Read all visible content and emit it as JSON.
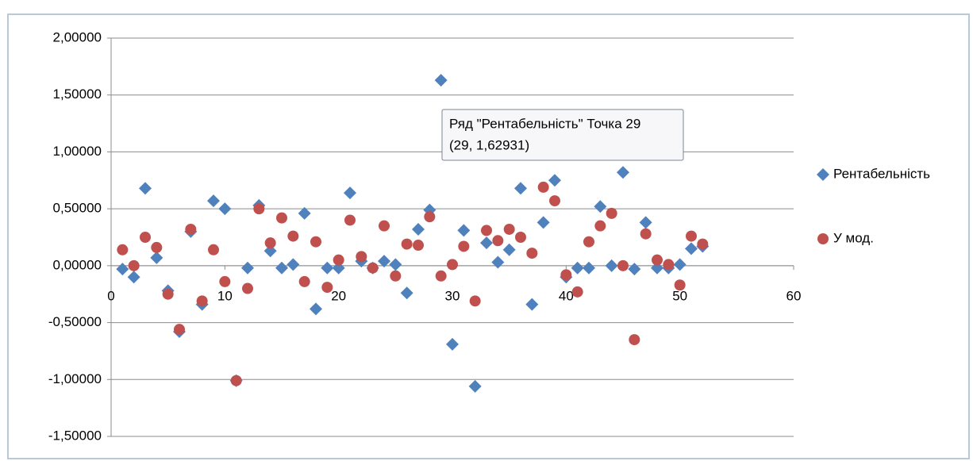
{
  "chart_data": {
    "type": "scatter",
    "x": [
      1,
      2,
      3,
      4,
      5,
      6,
      7,
      8,
      9,
      10,
      11,
      12,
      13,
      14,
      15,
      16,
      17,
      18,
      19,
      20,
      21,
      22,
      23,
      24,
      25,
      26,
      27,
      28,
      29,
      30,
      31,
      32,
      33,
      34,
      35,
      36,
      37,
      38,
      39,
      40,
      41,
      42,
      43,
      44,
      45,
      46,
      47,
      48,
      49,
      50,
      51,
      52
    ],
    "series": [
      {
        "name": "Рентабельність",
        "color": "#4f81bd",
        "marker": "diamond",
        "values": [
          -0.03,
          -0.1,
          0.68,
          0.07,
          -0.22,
          -0.58,
          0.3,
          -0.34,
          0.57,
          0.5,
          -1.01,
          -0.02,
          0.53,
          0.13,
          -0.02,
          0.01,
          0.46,
          -0.38,
          -0.02,
          -0.02,
          0.64,
          0.04,
          -0.02,
          0.04,
          0.01,
          -0.24,
          0.32,
          0.49,
          1.62931,
          -0.69,
          0.31,
          -1.06,
          0.2,
          0.03,
          0.14,
          0.68,
          -0.34,
          0.38,
          0.75,
          -0.1,
          -0.02,
          -0.02,
          0.52,
          0.0,
          0.82,
          -0.03,
          0.38,
          -0.02,
          -0.02,
          0.01,
          0.15,
          0.17
        ]
      },
      {
        "name": "У мод.",
        "color": "#c0504d",
        "marker": "circle",
        "values": [
          0.14,
          0.0,
          0.25,
          0.16,
          -0.25,
          -0.56,
          0.32,
          -0.31,
          0.14,
          -0.14,
          -1.01,
          -0.2,
          0.5,
          0.2,
          0.42,
          0.26,
          -0.14,
          0.21,
          -0.19,
          0.05,
          0.4,
          0.08,
          -0.02,
          0.35,
          -0.09,
          0.19,
          0.18,
          0.43,
          -0.09,
          0.01,
          0.17,
          -0.31,
          0.31,
          0.22,
          0.32,
          0.25,
          0.11,
          0.69,
          0.57,
          -0.08,
          -0.23,
          0.21,
          0.35,
          0.46,
          0.0,
          -0.65,
          0.28,
          0.05,
          0.01,
          -0.17,
          0.26,
          0.19
        ]
      }
    ],
    "xlim": [
      0,
      60
    ],
    "xticks": [
      0,
      10,
      20,
      30,
      40,
      50,
      60
    ],
    "ylim": [
      -1.5,
      2.0
    ],
    "yticks": [
      {
        "value": -1.5,
        "label": "-1,50000"
      },
      {
        "value": -1.0,
        "label": "-1,00000"
      },
      {
        "value": -0.5,
        "label": "-0,50000"
      },
      {
        "value": 0,
        "label": "0,00000"
      },
      {
        "value": 0.5,
        "label": "0,50000"
      },
      {
        "value": 1.0,
        "label": "1,00000"
      },
      {
        "value": 1.5,
        "label": "1,50000"
      },
      {
        "value": 2.0,
        "label": "2,00000"
      }
    ],
    "grid": true,
    "legend": "right",
    "tooltip": {
      "title": "Ряд \"Рентабельність\" Точка 29",
      "text": "(29, 1,62931)"
    }
  }
}
